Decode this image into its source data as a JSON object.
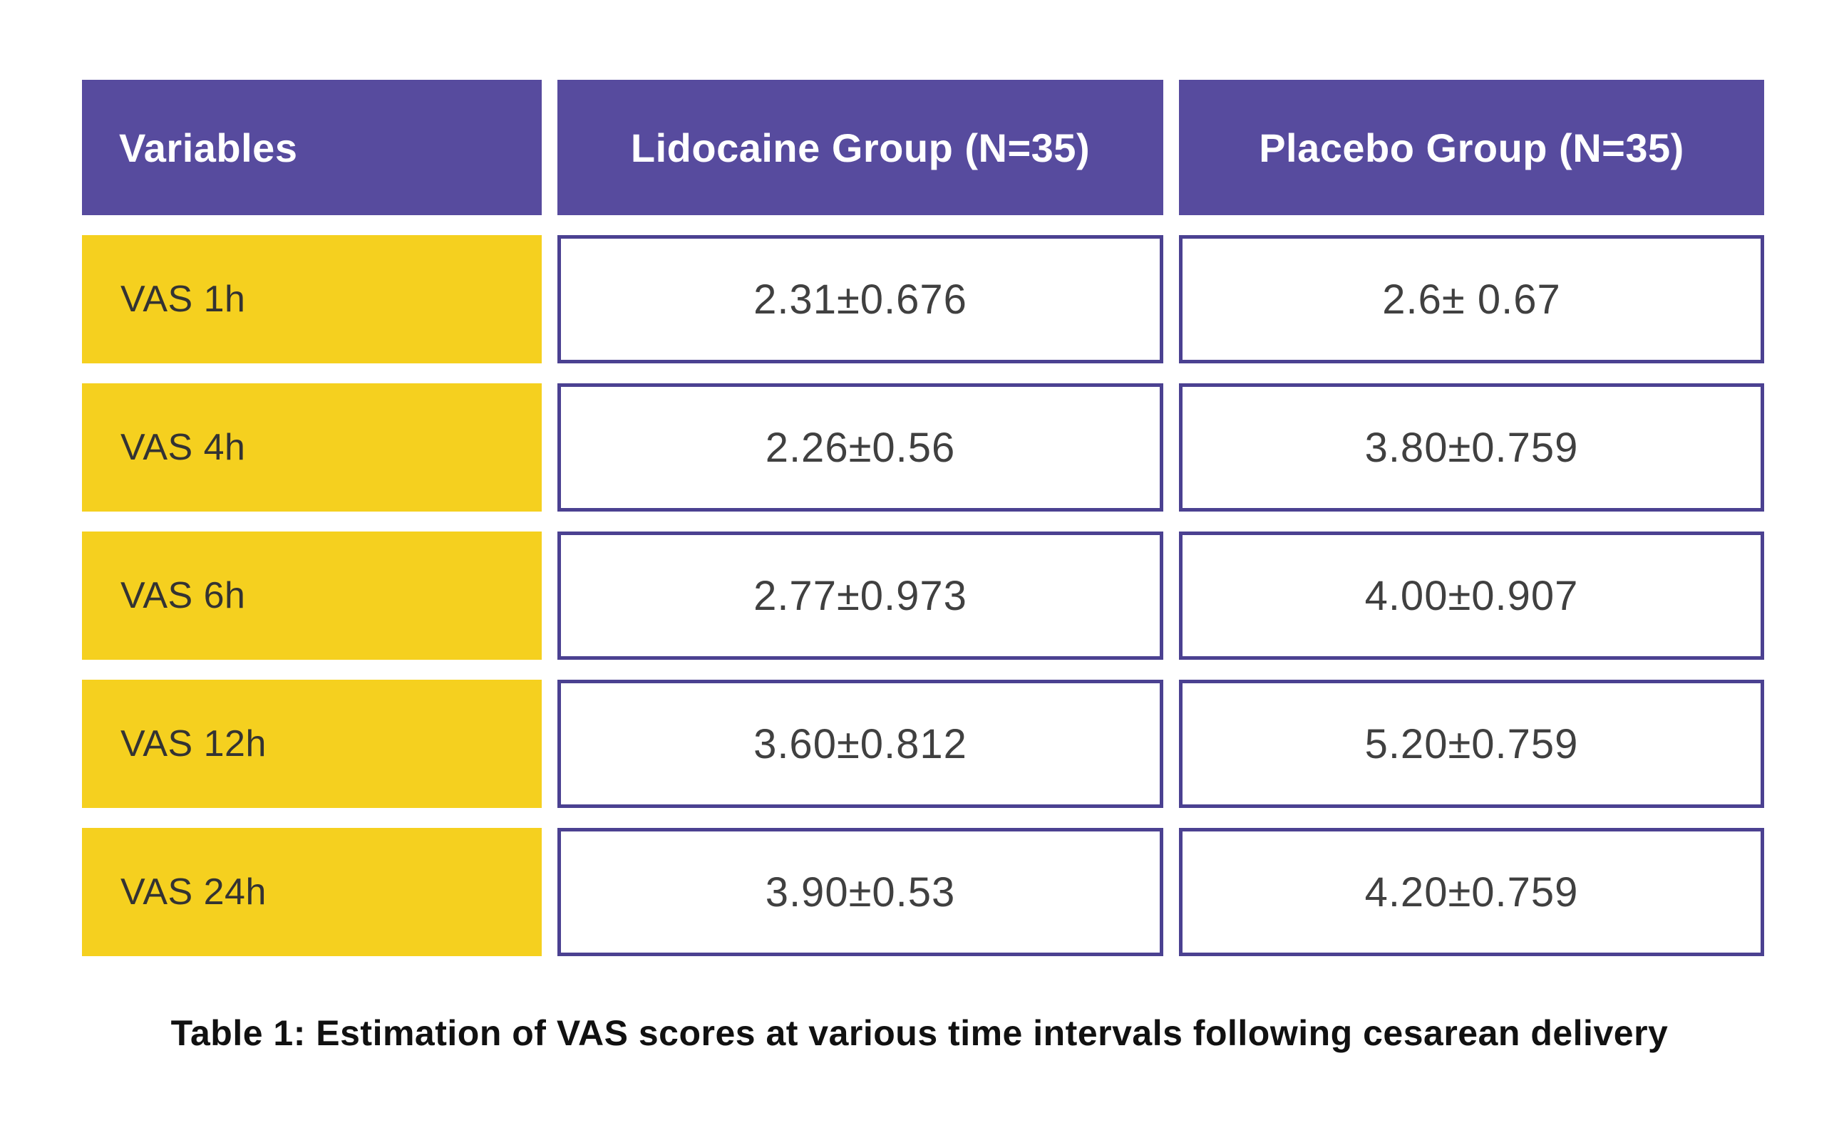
{
  "chart_data": {
    "type": "table",
    "title": "Table 1: Estimation of VAS scores at various time intervals following cesarean delivery",
    "columns": [
      "Variables",
      "Lidocaine Group (N=35)",
      "Placebo Group (N=35)"
    ],
    "rows": [
      [
        "VAS 1h",
        "2.31±0.676",
        "2.6± 0.67"
      ],
      [
        "VAS 4h",
        "2.26±0.56",
        "3.80±0.759"
      ],
      [
        "VAS 6h",
        "2.77±0.973",
        "4.00±0.907"
      ],
      [
        "VAS 12h",
        "3.60±0.812",
        "5.20±0.759"
      ],
      [
        "VAS 24h",
        "3.90±0.53",
        "4.20±0.759"
      ]
    ],
    "legend_position": "none",
    "grid": false
  },
  "table": {
    "columns": [
      "Variables",
      "Lidocaine Group (N=35)",
      "Placebo Group (N=35)"
    ],
    "rows": [
      {
        "variable": "VAS 1h",
        "lidocaine": "2.31±0.676",
        "placebo": "2.6± 0.67"
      },
      {
        "variable": "VAS 4h",
        "lidocaine": "2.26±0.56",
        "placebo": "3.80±0.759"
      },
      {
        "variable": "VAS 6h",
        "lidocaine": "2.77±0.973",
        "placebo": "4.00±0.907"
      },
      {
        "variable": "VAS 12h",
        "lidocaine": "3.60±0.812",
        "placebo": "5.20±0.759"
      },
      {
        "variable": "VAS 24h",
        "lidocaine": "3.90±0.53",
        "placebo": "4.20±0.759"
      }
    ],
    "caption": "Table 1: Estimation of VAS scores at various time intervals following cesarean delivery"
  },
  "colors": {
    "page-bg": "#FFFFFF",
    "header-bg": "#574B9E",
    "header-text": "#FFFFFF",
    "row-label-bg": "#F5D01F",
    "row-label-text": "#333333",
    "cell-bg": "#FFFFFF",
    "cell-border": "#4B4191",
    "value-text": "#404040",
    "caption-text": "#111111"
  }
}
